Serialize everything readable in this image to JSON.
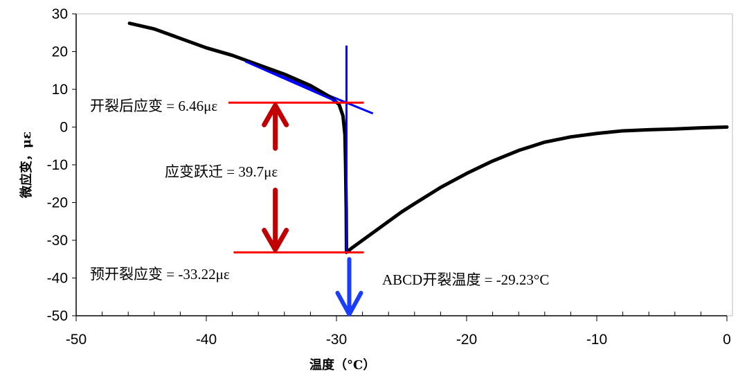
{
  "chart_data": {
    "type": "line",
    "xlabel": "温度（°C）",
    "ylabel": "微应变，με",
    "xlim": [
      -50,
      0
    ],
    "ylim": [
      -50,
      30
    ],
    "xticks": [
      -50,
      -40,
      -30,
      -20,
      -10,
      0
    ],
    "yticks": [
      30,
      20,
      10,
      0,
      -10,
      -20,
      -30,
      -40,
      -50
    ],
    "grid": false,
    "colors": {
      "curve": "#000000",
      "tangent": "#0000ff",
      "level": "#ff0000",
      "arrow": "#c00000",
      "blue_arrow": "#1a3cff"
    },
    "series": [
      {
        "x": [
          -45.9,
          -44,
          -42,
          -40,
          -38,
          -36,
          -34,
          -32,
          -30.5,
          -29.8,
          -29.5,
          -29.35,
          -29.3,
          -29.25,
          -29.23,
          -28.8,
          -28,
          -27,
          -26,
          -25,
          -24,
          -22,
          -20,
          -18,
          -16,
          -14,
          -12,
          -10,
          -8,
          -6,
          -4,
          -2,
          0
        ],
        "y": [
          27.5,
          26,
          23.5,
          21,
          19,
          16.5,
          14,
          11,
          8,
          6,
          3,
          -2,
          -10,
          -22,
          -33.2,
          -32,
          -30,
          -27.5,
          -25,
          -22.5,
          -20.3,
          -16,
          -12.3,
          -9,
          -6.2,
          -4,
          -2.6,
          -1.7,
          -1,
          -0.7,
          -0.5,
          -0.2,
          0
        ]
      }
    ],
    "tangent_line": {
      "x": [
        -37,
        -27.2
      ],
      "y": [
        17.4,
        3.6
      ]
    },
    "vertical_line": {
      "x": -29.23,
      "y": [
        21.6,
        -33.3
      ]
    },
    "level_lines": [
      {
        "y": 6.46,
        "x": [
          -38.3,
          -27.9
        ]
      },
      {
        "y": -33.22,
        "x": [
          -37.9,
          -27.9
        ]
      }
    ],
    "annotations": {
      "post_crack": "开裂后应变 = 6.46με",
      "jump": "应变跃迁 = 39.7με",
      "pre_crack": "预开裂应变 = -33.22με",
      "crack_temp": "ABCD开裂温度 = -29.23°C"
    }
  }
}
